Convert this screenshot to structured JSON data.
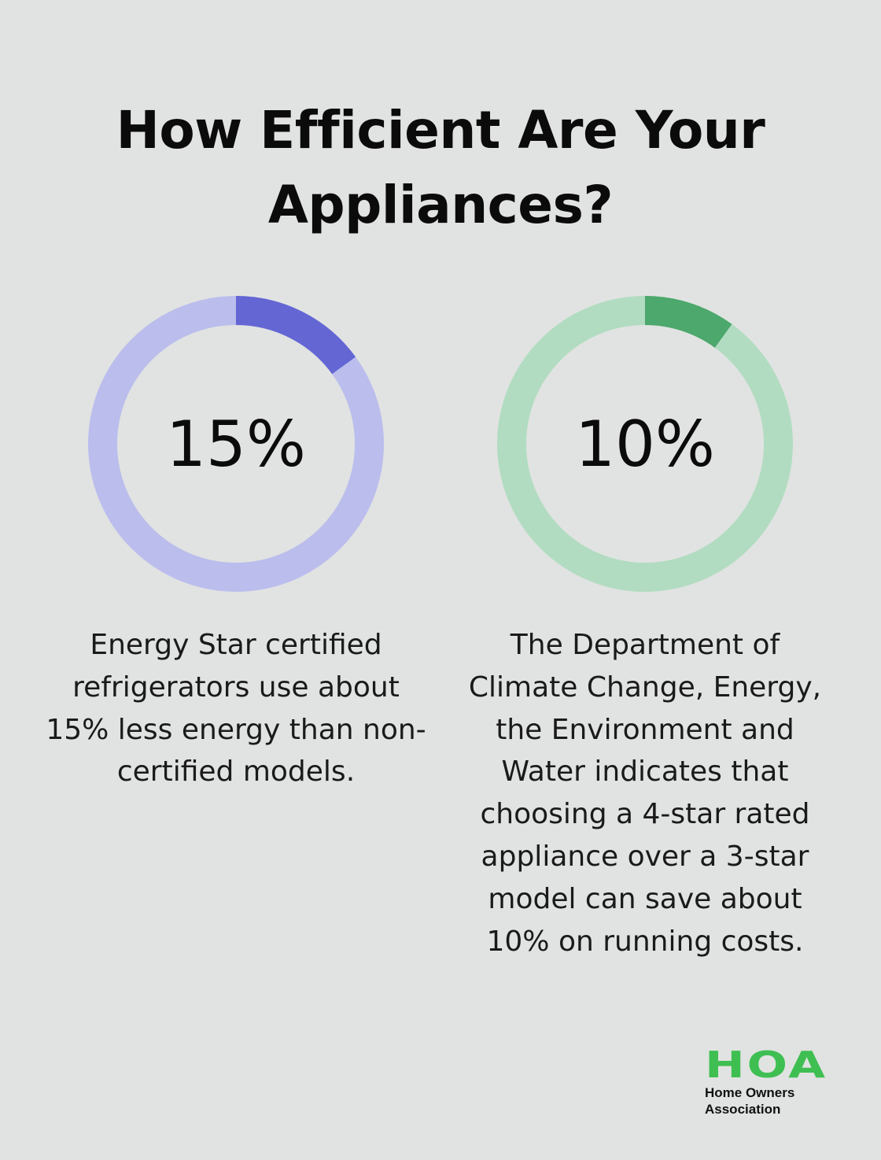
{
  "title": {
    "line1": "How Efficient Are Your",
    "line2": "Appliances?"
  },
  "chart_data": [
    {
      "type": "pie",
      "variant": "donut",
      "value": 15,
      "max": 100,
      "label": "15%",
      "description": [
        "Energy Star certified",
        "refrigerators use about",
        "15% less energy than non-",
        "certified models."
      ],
      "colors": {
        "fill": "#6366d3",
        "track": "#bbbded"
      }
    },
    {
      "type": "pie",
      "variant": "donut",
      "value": 10,
      "max": 100,
      "label": "10%",
      "description": [
        "The Department of",
        "Climate Change, Energy,",
        "the Environment and",
        "Water indicates that",
        "choosing a 4-star rated",
        "appliance over a 3-star",
        "model can save about",
        "10% on running costs."
      ],
      "colors": {
        "fill": "#4ca86c",
        "track": "#b2dcc1"
      }
    }
  ],
  "logo": {
    "mark": "HOA",
    "line1": "Home Owners",
    "line2": "Association",
    "color": "#3fbf52"
  }
}
